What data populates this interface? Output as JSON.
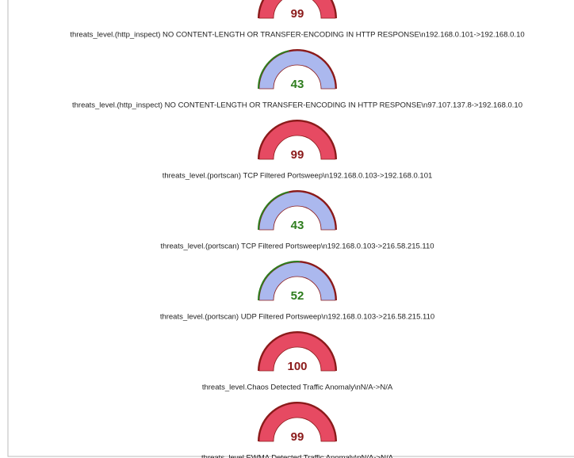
{
  "range": [
    0,
    100
  ],
  "gauges": [
    {
      "value": 99,
      "label": "threats_level.(http_inspect) NO CONTENT-LENGTH OR TRANSFER-ENCODING IN HTTP RESPONSE\\n192.168.0.101->192.168.0.10",
      "fill": "#e64a62",
      "color": "#8b1a1a"
    },
    {
      "value": 43,
      "label": "threats_level.(http_inspect) NO CONTENT-LENGTH OR TRANSFER-ENCODING IN HTTP RESPONSE\\n97.107.137.8->192.168.0.10",
      "fill": "#abb8ee",
      "color": "#2e7d1e"
    },
    {
      "value": 99,
      "label": "threats_level.(portscan) TCP Filtered Portsweep\\n192.168.0.103->192.168.0.101",
      "fill": "#e64a62",
      "color": "#8b1a1a"
    },
    {
      "value": 43,
      "label": "threats_level.(portscan) TCP Filtered Portsweep\\n192.168.0.103->216.58.215.110",
      "fill": "#abb8ee",
      "color": "#2e7d1e"
    },
    {
      "value": 52,
      "label": "threats_level.(portscan) UDP Filtered Portsweep\\n192.168.0.103->216.58.215.110",
      "fill": "#abb8ee",
      "color": "#2e7d1e"
    },
    {
      "value": 100,
      "label": "threats_level.Chaos Detected Traffic Anomaly\\nN/A->N/A",
      "fill": "#e64a62",
      "color": "#8b1a1a"
    },
    {
      "value": 99,
      "label": "threats_level.EWMA Detected Traffic Anomaly\\nN/A->N/A",
      "fill": "#e64a62",
      "color": "#8b1a1a"
    }
  ]
}
